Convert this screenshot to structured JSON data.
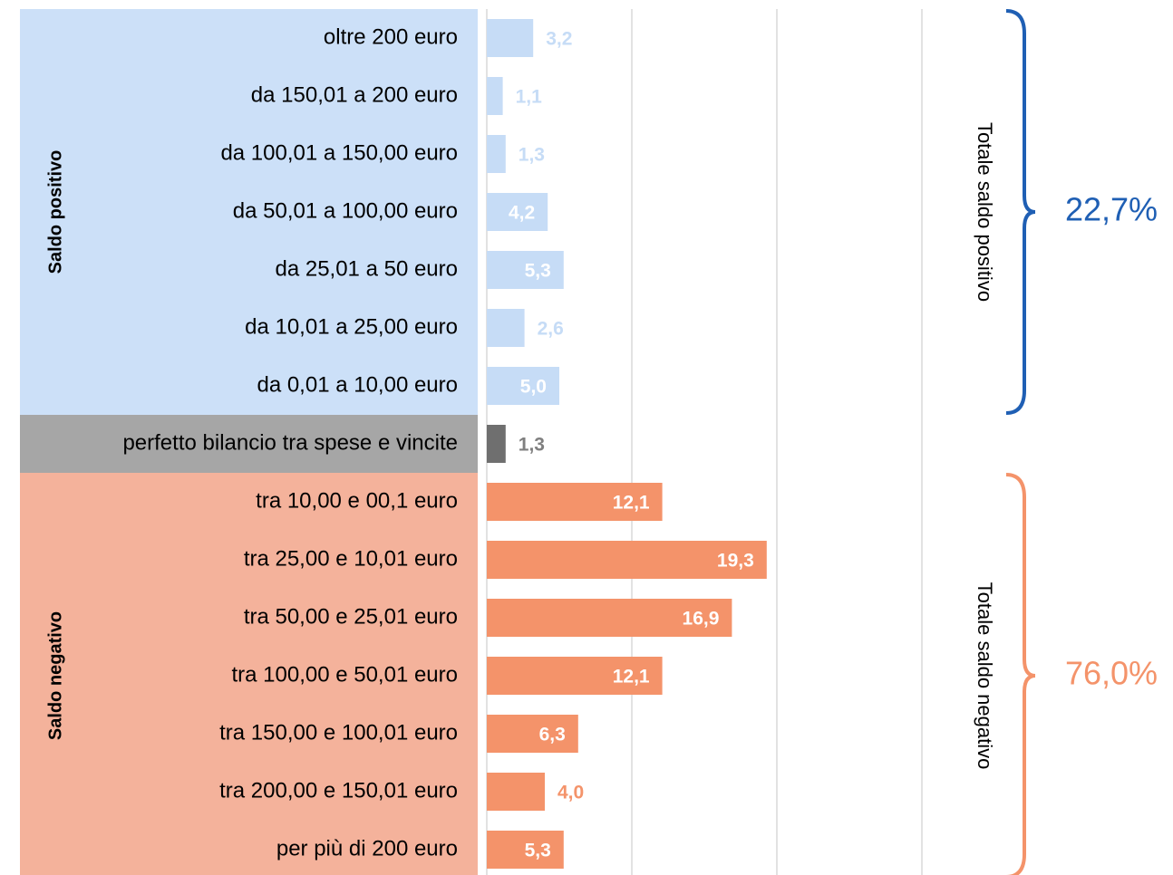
{
  "chart_data": {
    "type": "bar",
    "xlim": [
      0,
      30
    ],
    "xticks": [
      0,
      10,
      20,
      30
    ],
    "grid": true,
    "groups": [
      {
        "name": "Saldo positivo",
        "color": "#c6dcf6",
        "panel_color": "#cce0f8",
        "bracket_color": "#1f5fb4",
        "total_label": "Totale saldo positivo",
        "total": "22,7%",
        "categories": [
          "oltre 200 euro",
          "da 150,01 a 200 euro",
          "da 100,01 a 150,00 euro",
          "da 50,01 a 100,00 euro",
          "da 25,01 a 50 euro",
          "da 10,01 a 25,00 euro",
          "da 0,01 a 10,00 euro"
        ],
        "values": [
          3.2,
          1.1,
          1.3,
          4.2,
          5.3,
          2.6,
          5.0
        ],
        "value_labels": [
          "3,2",
          "1,1",
          "1,3",
          "4,2",
          "5,3",
          "2,6",
          "5,0"
        ]
      },
      {
        "color": "#6f6f6f",
        "panel_color": "#a6a6a6",
        "categories": [
          "perfetto bilancio tra spese e vincite"
        ],
        "values": [
          1.3
        ],
        "value_labels": [
          "1,3"
        ]
      },
      {
        "name": "Saldo negativo",
        "color": "#f4936a",
        "panel_color": "#f4b29b",
        "bracket_color": "#f4936a",
        "total_label": "Totale saldo negativo",
        "total": "76,0%",
        "categories": [
          "tra 10,00 e 00,1 euro",
          "tra 25,00 e 10,01 euro",
          "tra 50,00 e 25,01 euro",
          "tra 100,00 e 50,01 euro",
          "tra 150,00 e 100,01 euro",
          "tra 200,00 e 150,01 euro",
          "per più di 200 euro"
        ],
        "values": [
          12.1,
          19.3,
          16.9,
          12.1,
          6.3,
          4.0,
          5.3
        ],
        "value_labels": [
          "12,1",
          "19,3",
          "16,9",
          "12,1",
          "6,3",
          "4,0",
          "5,3"
        ]
      }
    ]
  }
}
